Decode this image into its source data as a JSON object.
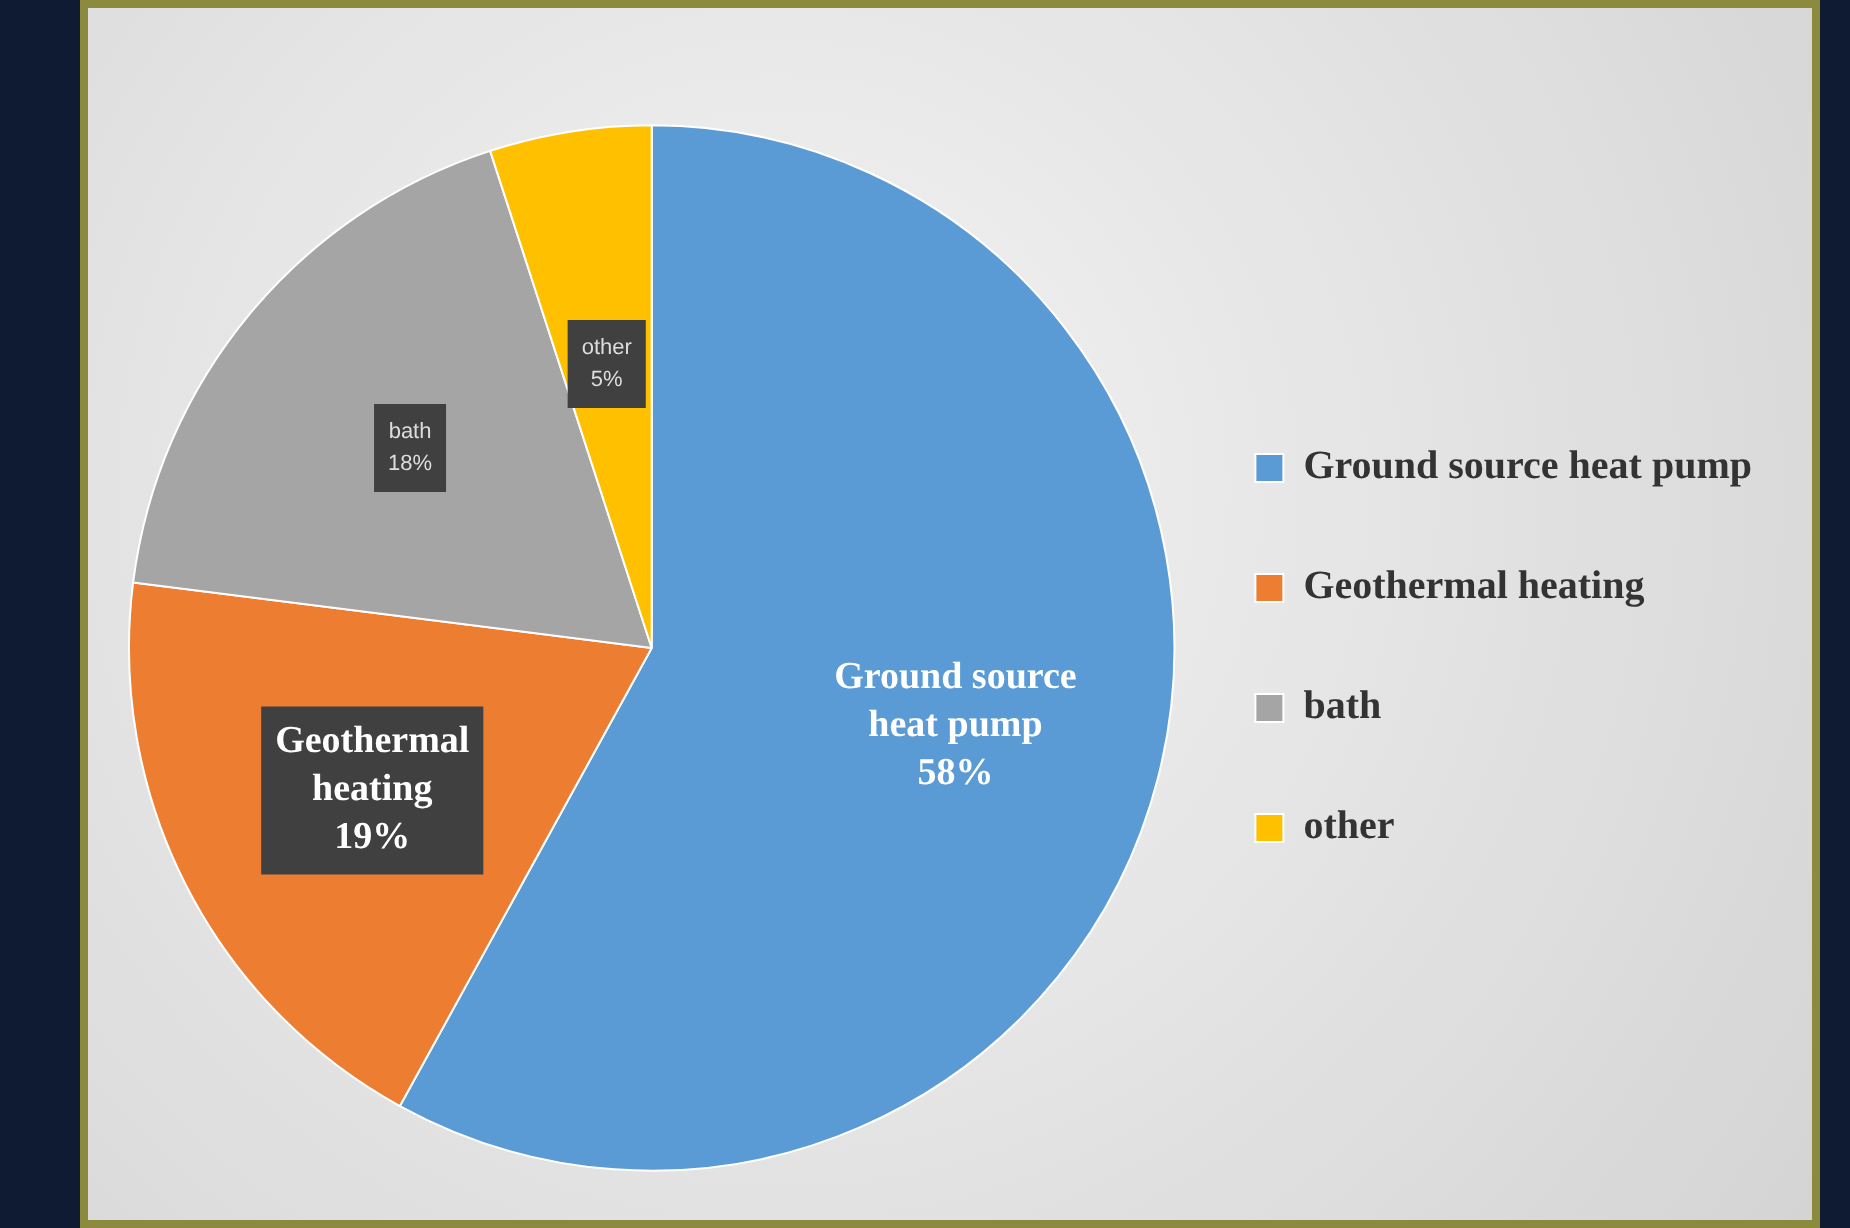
{
  "chart_data": {
    "type": "pie",
    "categories": [
      "Ground source heat pump",
      "Geothermal heating",
      "bath",
      "other"
    ],
    "values": [
      58,
      19,
      18,
      5
    ],
    "value_labels": [
      "58%",
      "19%",
      "18%",
      "5%"
    ],
    "colors": [
      "#5b9bd5",
      "#ed7d31",
      "#a5a5a5",
      "#ffc000"
    ],
    "legend": "right"
  }
}
